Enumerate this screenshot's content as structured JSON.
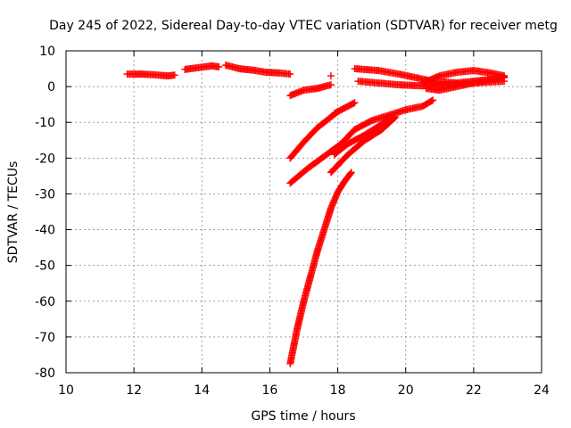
{
  "chart_data": {
    "type": "scatter",
    "title": "Day 245 of 2022, Sidereal Day-to-day VTEC variation (SDTVAR) for receiver metg",
    "xlabel": "GPS time / hours",
    "ylabel": "SDTVAR / TECUs",
    "xlim": [
      10,
      24
    ],
    "ylim": [
      -80,
      10
    ],
    "xticks": [
      "10",
      "12",
      "14",
      "16",
      "18",
      "20",
      "22",
      "24"
    ],
    "yticks": [
      "10",
      "0",
      "-10",
      "-20",
      "-30",
      "-40",
      "-50",
      "-60",
      "-70",
      "-80"
    ],
    "grid": true,
    "marker": "plus",
    "color": "#ff0000",
    "series": [
      {
        "x": [
          11.8,
          12.2,
          12.6,
          13.0,
          13.2
        ],
        "y": [
          3.5,
          3.5,
          3.3,
          3.0,
          3.2
        ]
      },
      {
        "x": [
          13.5,
          13.9,
          14.3,
          14.5
        ],
        "y": [
          4.8,
          5.3,
          5.8,
          5.5
        ]
      },
      {
        "x": [
          14.7,
          15.1,
          15.5,
          15.9,
          16.3,
          16.6
        ],
        "y": [
          6.0,
          5.0,
          4.6,
          4.0,
          3.8,
          3.5
        ]
      },
      {
        "x": [
          16.6,
          17.0,
          17.4,
          17.8
        ],
        "y": [
          -2.5,
          -1.0,
          -0.5,
          0.5
        ]
      },
      {
        "x": [
          17.8
        ],
        "y": [
          3.0
        ]
      },
      {
        "x": [
          18.5,
          19.2,
          19.8,
          20.3,
          20.8,
          21.5,
          22.0,
          22.5,
          22.9
        ],
        "y": [
          5.0,
          4.5,
          3.5,
          2.5,
          1.5,
          1.0,
          1.5,
          2.0,
          2.5
        ]
      },
      {
        "x": [
          18.6,
          19.2,
          19.8,
          20.5,
          21.2,
          22.0,
          22.9
        ],
        "y": [
          1.5,
          1.0,
          0.5,
          0.2,
          0.5,
          1.0,
          1.5
        ]
      },
      {
        "x": [
          20.5,
          21.0,
          21.5,
          22.0,
          22.5,
          22.9
        ],
        "y": [
          1.0,
          3.0,
          4.0,
          4.5,
          3.8,
          3.0
        ]
      },
      {
        "x": [
          20.6,
          21.0,
          21.5,
          22.0,
          22.5,
          22.9
        ],
        "y": [
          -0.5,
          -1.0,
          0.0,
          1.0,
          2.0,
          2.8
        ]
      },
      {
        "x": [
          17.9,
          18.2,
          18.5
        ],
        "y": [
          -7.5,
          -6.0,
          -4.5
        ]
      },
      {
        "x": [
          16.6,
          17.0,
          17.4,
          17.8,
          18.0
        ],
        "y": [
          -20.0,
          -15.5,
          -11.5,
          -8.5,
          -7.0
        ]
      },
      {
        "x": [
          16.6,
          17.1,
          17.6,
          18.1,
          18.5,
          19.0,
          19.5,
          20.0,
          20.5,
          20.8
        ],
        "y": [
          -27.0,
          -23.0,
          -19.5,
          -16.0,
          -12.0,
          -9.5,
          -8.0,
          -6.5,
          -5.5,
          -3.8
        ]
      },
      {
        "x": [
          17.8,
          18.3,
          18.8,
          19.3,
          19.7
        ],
        "y": [
          -24.0,
          -19.0,
          -15.0,
          -12.0,
          -8.5
        ]
      },
      {
        "x": [
          17.9,
          18.3,
          18.8,
          19.3,
          19.6
        ],
        "y": [
          -19.0,
          -16.0,
          -13.5,
          -10.5,
          -8.0
        ]
      },
      {
        "x": [
          16.6,
          16.8,
          17.0,
          17.2,
          17.4,
          17.6,
          17.8,
          18.0,
          18.2,
          18.4
        ],
        "y": [
          -77.5,
          -68.0,
          -60.0,
          -53.0,
          -46.0,
          -40.0,
          -34.0,
          -29.5,
          -26.5,
          -24.0
        ]
      }
    ]
  }
}
